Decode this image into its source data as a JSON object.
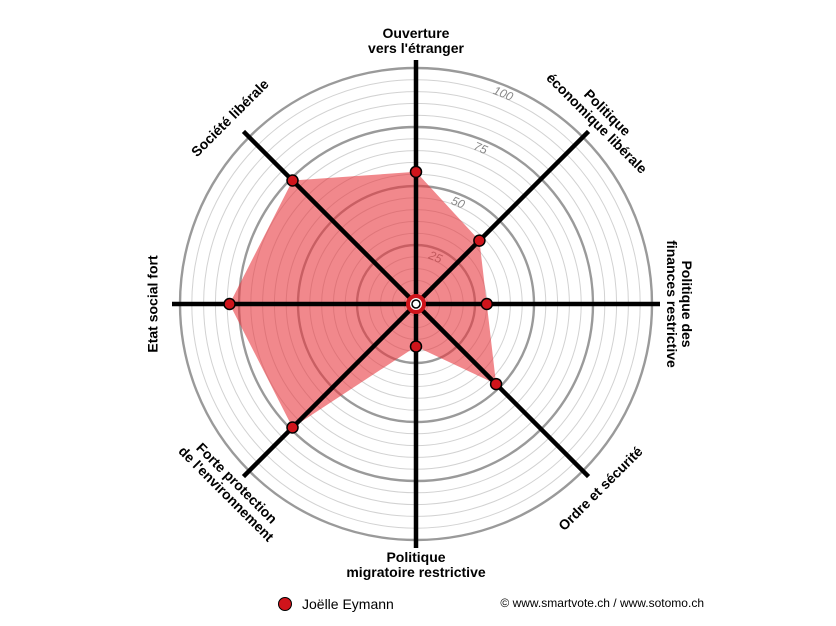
{
  "chart_data": {
    "type": "radar",
    "axes": [
      [
        "Ouverture",
        "vers l'étranger"
      ],
      [
        "Politique",
        "économique libérale"
      ],
      [
        "Politique des",
        "finances restrictive"
      ],
      [
        "Ordre et sécurité"
      ],
      [
        "Politique",
        "migratoire restrictive"
      ],
      [
        "Forte protection",
        "de l'environnement"
      ],
      [
        "Etat social fort"
      ],
      [
        "Société libérale"
      ]
    ],
    "series": [
      {
        "name": "Joëlle Eymann",
        "values": [
          56,
          38,
          30,
          48,
          18,
          74,
          79,
          74
        ]
      }
    ],
    "rlim": [
      0,
      100
    ],
    "ticks": [
      25,
      50,
      75,
      100
    ],
    "grid": true,
    "legend_position": "bottom"
  },
  "legend": {
    "label": "Joëlle Eymann"
  },
  "credits": "© www.smartvote.ch / www.sotomo.ch",
  "colors": {
    "fill": "#e8383f",
    "marker": "#d0141b",
    "spoke": "#000000",
    "grid_major": "#9a9a9a",
    "grid_minor": "#d2d2d2"
  }
}
